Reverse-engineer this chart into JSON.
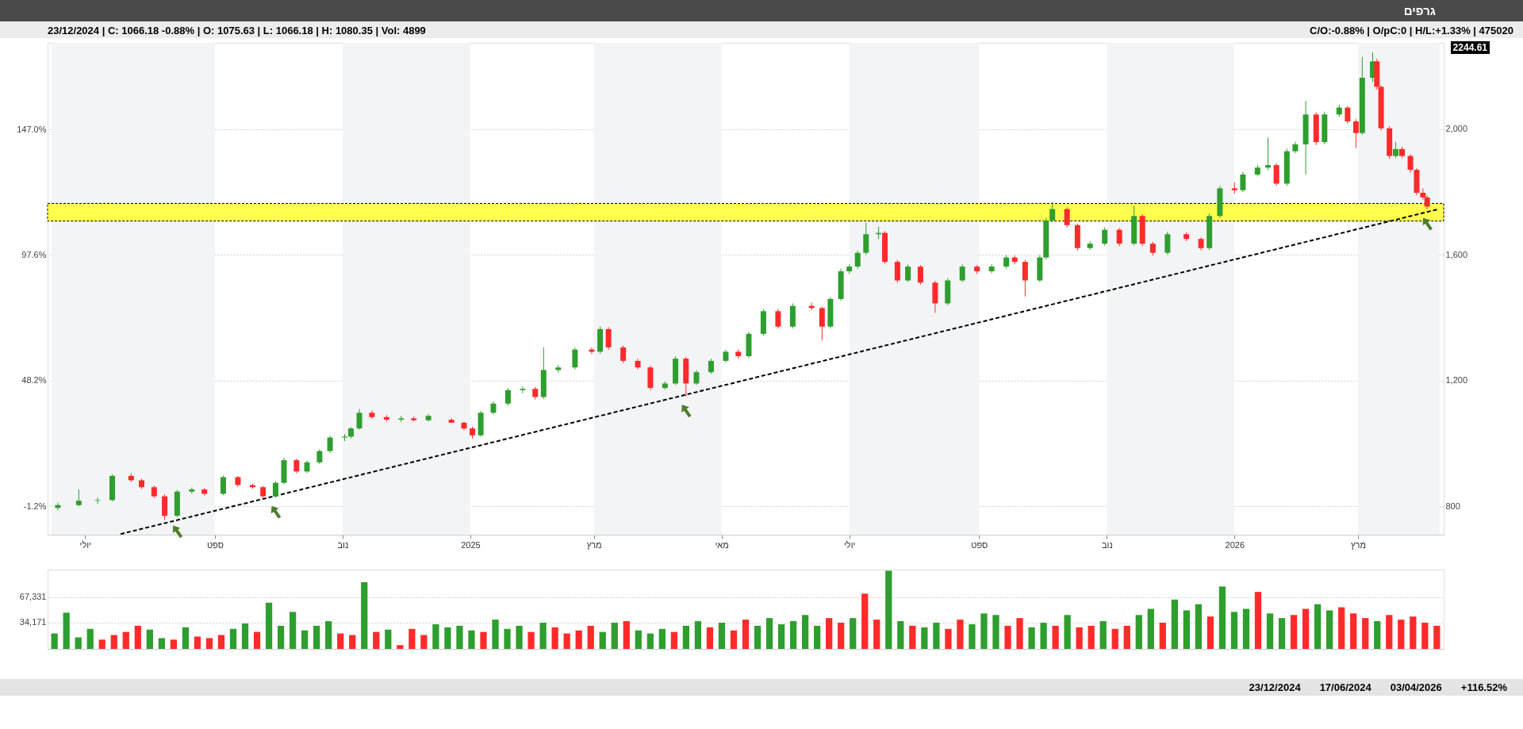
{
  "chart_data": [
    {
      "type": "candlestick",
      "title": "גרפים",
      "annotations": [
        "23/12/2024 | C: 1066.18 -0.88% | O: 1075.63 | L: 1066.18 | H: 1080.35 | Vol: 4899",
        "C/O:-0.88% | O/pC:0 | H/L:+1.33% | 475020",
        "2244.61"
      ],
      "x": [
        "2024-06-18",
        "2024-06-28",
        "2024-07-07",
        "2024-07-14",
        "2024-07-23",
        "2024-07-28",
        "2024-08-03",
        "2024-08-08",
        "2024-08-14",
        "2024-08-21",
        "2024-08-27",
        "2024-09-05",
        "2024-09-12",
        "2024-09-19",
        "2024-09-24",
        "2024-09-30",
        "2024-10-04",
        "2024-10-10",
        "2024-10-15",
        "2024-10-21",
        "2024-10-26",
        "2024-11-02",
        "2024-11-05",
        "2024-11-09",
        "2024-11-15",
        "2024-11-22",
        "2024-11-29",
        "2024-12-05",
        "2024-12-12",
        "2024-12-23",
        "2024-12-29",
        "2025-01-02",
        "2025-01-06",
        "2025-01-12",
        "2025-01-19",
        "2025-01-26",
        "2025-02-01",
        "2025-02-05",
        "2025-02-12",
        "2025-02-20",
        "2025-02-28",
        "2025-03-04",
        "2025-03-08",
        "2025-03-15",
        "2025-03-22",
        "2025-03-28",
        "2025-04-04",
        "2025-04-09",
        "2025-04-14",
        "2025-04-19",
        "2025-04-26",
        "2025-05-03",
        "2025-05-09",
        "2025-05-14",
        "2025-05-21",
        "2025-05-28",
        "2025-06-04",
        "2025-06-13",
        "2025-06-18",
        "2025-06-22",
        "2025-06-27",
        "2025-07-01",
        "2025-07-05",
        "2025-07-09",
        "2025-07-15",
        "2025-07-18",
        "2025-07-24",
        "2025-07-29",
        "2025-08-04",
        "2025-08-11",
        "2025-08-17",
        "2025-08-24",
        "2025-08-31",
        "2025-09-07",
        "2025-09-14",
        "2025-09-18",
        "2025-09-23",
        "2025-09-30",
        "2025-10-03",
        "2025-10-06",
        "2025-10-13",
        "2025-10-18",
        "2025-10-24",
        "2025-10-31",
        "2025-11-07",
        "2025-11-14",
        "2025-11-18",
        "2025-11-23",
        "2025-11-30",
        "2025-12-09",
        "2025-12-16",
        "2025-12-20",
        "2025-12-25",
        "2026-01-01",
        "2026-01-05",
        "2026-01-12",
        "2026-01-17",
        "2026-01-21",
        "2026-01-26",
        "2026-01-30",
        "2026-02-04",
        "2026-02-09",
        "2026-02-13",
        "2026-02-20",
        "2026-02-24",
        "2026-02-28",
        "2026-03-03",
        "2026-03-08",
        "2026-03-10",
        "2026-03-12",
        "2026-03-16",
        "2026-03-19",
        "2026-03-22",
        "2026-03-26",
        "2026-03-29",
        "2026-04-01",
        "2026-04-03"
      ],
      "ohlc": [
        [
          795,
          812,
          788,
          804
        ],
        [
          804,
          854,
          800,
          818
        ],
        [
          818,
          828,
          808,
          820
        ],
        [
          820,
          902,
          816,
          897
        ],
        [
          897,
          905,
          878,
          883
        ],
        [
          883,
          888,
          856,
          861
        ],
        [
          861,
          866,
          826,
          832
        ],
        [
          832,
          838,
          757,
          770
        ],
        [
          770,
          852,
          766,
          847
        ],
        [
          847,
          860,
          840,
          854
        ],
        [
          854,
          858,
          834,
          840
        ],
        [
          840,
          898,
          836,
          893
        ],
        [
          893,
          897,
          862,
          868
        ],
        [
          868,
          872,
          856,
          861
        ],
        [
          861,
          865,
          822,
          832
        ],
        [
          832,
          880,
          828,
          875
        ],
        [
          875,
          955,
          870,
          947
        ],
        [
          947,
          952,
          905,
          911
        ],
        [
          911,
          946,
          906,
          940
        ],
        [
          940,
          982,
          935,
          976
        ],
        [
          976,
          1025,
          970,
          1019
        ],
        [
          1019,
          1030,
          1008,
          1022
        ],
        [
          1022,
          1052,
          1016,
          1048
        ],
        [
          1048,
          1110,
          1044,
          1098
        ],
        [
          1098,
          1105,
          1078,
          1084
        ],
        [
          1084,
          1090,
          1070,
          1076
        ],
        [
          1076,
          1088,
          1068,
          1080
        ],
        [
          1080,
          1086,
          1070,
          1074
        ],
        [
          1074,
          1094,
          1070,
          1088
        ],
        [
          1075.63,
          1080.35,
          1066.18,
          1066.18
        ],
        [
          1066,
          1070,
          1042,
          1048
        ],
        [
          1048,
          1054,
          1016,
          1026
        ],
        [
          1026,
          1104,
          1022,
          1098
        ],
        [
          1098,
          1134,
          1092,
          1127
        ],
        [
          1127,
          1176,
          1120,
          1170
        ],
        [
          1170,
          1182,
          1160,
          1174
        ],
        [
          1174,
          1180,
          1140,
          1148
        ],
        [
          1148,
          1306,
          1142,
          1234
        ],
        [
          1234,
          1250,
          1226,
          1242
        ],
        [
          1242,
          1305,
          1236,
          1299
        ],
        [
          1299,
          1306,
          1284,
          1292
        ],
        [
          1292,
          1372,
          1286,
          1364
        ],
        [
          1364,
          1370,
          1298,
          1306
        ],
        [
          1306,
          1312,
          1256,
          1263
        ],
        [
          1263,
          1270,
          1236,
          1242
        ],
        [
          1242,
          1248,
          1170,
          1177
        ],
        [
          1177,
          1198,
          1172,
          1191
        ],
        [
          1191,
          1278,
          1186,
          1270
        ],
        [
          1270,
          1276,
          1150,
          1191
        ],
        [
          1191,
          1234,
          1186,
          1227
        ],
        [
          1227,
          1270,
          1222,
          1263
        ],
        [
          1263,
          1298,
          1258,
          1292
        ],
        [
          1292,
          1300,
          1270,
          1278
        ],
        [
          1278,
          1356,
          1272,
          1349
        ],
        [
          1349,
          1428,
          1344,
          1421
        ],
        [
          1421,
          1428,
          1366,
          1372
        ],
        [
          1372,
          1446,
          1366,
          1438
        ],
        [
          1438,
          1448,
          1424,
          1431
        ],
        [
          1431,
          1436,
          1328,
          1372
        ],
        [
          1372,
          1466,
          1366,
          1460
        ],
        [
          1460,
          1556,
          1454,
          1548
        ],
        [
          1548,
          1570,
          1540,
          1563
        ],
        [
          1563,
          1614,
          1556,
          1607
        ],
        [
          1607,
          1702,
          1600,
          1666
        ],
        [
          1666,
          1690,
          1650,
          1670
        ],
        [
          1670,
          1676,
          1572,
          1578
        ],
        [
          1578,
          1584,
          1512,
          1519
        ],
        [
          1519,
          1570,
          1514,
          1563
        ],
        [
          1563,
          1568,
          1506,
          1512
        ],
        [
          1512,
          1518,
          1416,
          1446
        ],
        [
          1446,
          1526,
          1440,
          1519
        ],
        [
          1519,
          1570,
          1514,
          1563
        ],
        [
          1563,
          1568,
          1540,
          1548
        ],
        [
          1548,
          1570,
          1542,
          1563
        ],
        [
          1563,
          1600,
          1556,
          1592
        ],
        [
          1592,
          1598,
          1570,
          1578
        ],
        [
          1578,
          1584,
          1468,
          1519
        ],
        [
          1519,
          1600,
          1514,
          1592
        ],
        [
          1592,
          1718,
          1586,
          1710
        ],
        [
          1710,
          1768,
          1704,
          1746
        ],
        [
          1746,
          1752,
          1688,
          1695
        ],
        [
          1695,
          1700,
          1614,
          1622
        ],
        [
          1622,
          1644,
          1616,
          1636
        ],
        [
          1636,
          1688,
          1630,
          1680
        ],
        [
          1680,
          1686,
          1628,
          1636
        ],
        [
          1636,
          1757,
          1630,
          1724
        ],
        [
          1724,
          1730,
          1628,
          1636
        ],
        [
          1636,
          1642,
          1598,
          1607
        ],
        [
          1607,
          1674,
          1600,
          1666
        ],
        [
          1666,
          1672,
          1644,
          1651
        ],
        [
          1651,
          1656,
          1614,
          1622
        ],
        [
          1622,
          1732,
          1616,
          1724
        ],
        [
          1724,
          1820,
          1718,
          1812
        ],
        [
          1812,
          1830,
          1796,
          1806
        ],
        [
          1806,
          1864,
          1800,
          1856
        ],
        [
          1856,
          1886,
          1850,
          1878
        ],
        [
          1878,
          1974,
          1870,
          1886
        ],
        [
          1886,
          1892,
          1820,
          1827
        ],
        [
          1827,
          1938,
          1820,
          1930
        ],
        [
          1930,
          1960,
          1924,
          1952
        ],
        [
          1952,
          2090,
          1856,
          2047
        ],
        [
          2047,
          2054,
          1950,
          1959
        ],
        [
          1959,
          2056,
          1952,
          2047
        ],
        [
          2047,
          2078,
          2040,
          2069
        ],
        [
          2069,
          2074,
          2018,
          2025
        ],
        [
          2025,
          2032,
          1940,
          1988
        ],
        [
          1988,
          2230,
          1982,
          2164
        ],
        [
          2164,
          2244.61,
          2150,
          2216
        ],
        [
          2216,
          2224,
          2126,
          2135
        ],
        [
          2135,
          2140,
          1996,
          2003
        ],
        [
          2003,
          2010,
          1906,
          1915
        ],
        [
          1915,
          1960,
          1908,
          1937
        ],
        [
          1937,
          1944,
          1908,
          1915
        ],
        [
          1915,
          1920,
          1862,
          1871
        ],
        [
          1871,
          1876,
          1790,
          1798
        ],
        [
          1798,
          1812,
          1776,
          1783
        ],
        [
          1783,
          1790,
          1745,
          1754
        ]
      ],
      "colors": [
        "#2e9e2e",
        "#2e9e2e",
        "#2e9e2e",
        "#2e9e2e",
        "#ff2a2a",
        "#ff2a2a",
        "#ff2a2a",
        "#ff2a2a",
        "#2e9e2e",
        "#2e9e2e",
        "#ff2a2a",
        "#2e9e2e",
        "#ff2a2a",
        "#ff2a2a",
        "#ff2a2a",
        "#2e9e2e",
        "#2e9e2e",
        "#ff2a2a",
        "#2e9e2e",
        "#2e9e2e",
        "#2e9e2e",
        "#2e9e2e",
        "#2e9e2e",
        "#2e9e2e",
        "#ff2a2a",
        "#ff2a2a",
        "#2e9e2e",
        "#ff2a2a",
        "#2e9e2e",
        "#ff2a2a",
        "#ff2a2a",
        "#ff2a2a",
        "#2e9e2e",
        "#2e9e2e",
        "#2e9e2e",
        "#2e9e2e",
        "#ff2a2a",
        "#2e9e2e",
        "#2e9e2e",
        "#2e9e2e",
        "#ff2a2a",
        "#2e9e2e",
        "#ff2a2a",
        "#ff2a2a",
        "#ff2a2a",
        "#ff2a2a",
        "#2e9e2e",
        "#2e9e2e",
        "#ff2a2a",
        "#2e9e2e",
        "#2e9e2e",
        "#2e9e2e",
        "#ff2a2a",
        "#2e9e2e",
        "#2e9e2e",
        "#ff2a2a",
        "#2e9e2e",
        "#ff2a2a",
        "#ff2a2a",
        "#2e9e2e",
        "#2e9e2e",
        "#2e9e2e",
        "#2e9e2e",
        "#2e9e2e",
        "#2e9e2e",
        "#ff2a2a",
        "#ff2a2a",
        "#2e9e2e",
        "#ff2a2a",
        "#ff2a2a",
        "#2e9e2e",
        "#2e9e2e",
        "#ff2a2a",
        "#2e9e2e",
        "#2e9e2e",
        "#ff2a2a",
        "#ff2a2a",
        "#2e9e2e",
        "#2e9e2e",
        "#2e9e2e",
        "#ff2a2a",
        "#ff2a2a",
        "#2e9e2e",
        "#2e9e2e",
        "#ff2a2a",
        "#2e9e2e",
        "#ff2a2a",
        "#ff2a2a",
        "#2e9e2e",
        "#ff2a2a",
        "#ff2a2a",
        "#2e9e2e",
        "#2e9e2e",
        "#ff2a2a",
        "#2e9e2e",
        "#2e9e2e",
        "#2e9e2e",
        "#ff2a2a",
        "#2e9e2e",
        "#2e9e2e",
        "#2e9e2e",
        "#ff2a2a",
        "#2e9e2e",
        "#2e9e2e",
        "#ff2a2a",
        "#ff2a2a",
        "#2e9e2e",
        "#2e9e2e",
        "#ff2a2a",
        "#ff2a2a",
        "#ff2a2a",
        "#2e9e2e",
        "#ff2a2a",
        "#ff2a2a",
        "#ff2a2a",
        "#ff2a2a",
        "#ff2a2a"
      ],
      "series": [
        {
          "type": "line",
          "color": "#000000",
          "line_style": "dashed",
          "x": [
            "2024-07-18",
            "2026-04-08"
          ],
          "values": [
            712,
            1745
          ]
        }
      ],
      "bands": [
        {
          "axis": "x",
          "from": "2024-06-15",
          "to": "2024-09-01",
          "color": "#f3f4f6"
        },
        {
          "axis": "x",
          "from": "2024-11-01",
          "to": "2025-01-01",
          "color": "#f3f4f6"
        },
        {
          "axis": "x",
          "from": "2025-03-01",
          "to": "2025-05-01",
          "color": "#f3f4f6"
        },
        {
          "axis": "x",
          "from": "2025-07-01",
          "to": "2025-09-01",
          "color": "#f3f4f6"
        },
        {
          "axis": "x",
          "from": "2025-11-01",
          "to": "2026-01-01",
          "color": "#f3f4f6"
        },
        {
          "axis": "x",
          "from": "2026-03-01",
          "to": "2026-04-09",
          "color": "#f3f4f6"
        },
        {
          "axis": "y",
          "from": 1708,
          "to": 1764,
          "color": "#ffff4d"
        }
      ],
      "xlim": [
        "2024-06-15",
        "2026-04-09"
      ],
      "xticks": [
        {
          "value": "2024-07",
          "label": "יולי"
        },
        {
          "value": "2024-09",
          "label": "ספט"
        },
        {
          "value": "2024-11",
          "label": "נוב"
        },
        {
          "value": "2025-01",
          "label": "2025"
        },
        {
          "value": "2025-03",
          "label": "מרץ"
        },
        {
          "value": "2025-05",
          "label": "מאי"
        },
        {
          "value": "2025-07",
          "label": "יולי"
        },
        {
          "value": "2025-09",
          "label": "ספט"
        },
        {
          "value": "2025-11",
          "label": "נוב"
        },
        {
          "value": "2026-01",
          "label": "2026"
        },
        {
          "value": "2026-03",
          "label": "מרץ"
        }
      ],
      "ylim": [
        710,
        2275
      ],
      "yticks": [
        800,
        {
          "value": 1200,
          "label": "1,200"
        },
        {
          "value": 1600,
          "label": "1,600"
        },
        {
          "value": 2000,
          "label": "2,000"
        }
      ],
      "y2lim": [
        -12.3,
        181.0
      ],
      "y2ticks": [
        {
          "value": -1.2,
          "label": "-1.2%"
        },
        {
          "value": 48.2,
          "label": "48.2%"
        },
        {
          "value": 97.6,
          "label": "97.6%"
        },
        {
          "value": 147,
          "label": "147.0%"
        }
      ],
      "grid": "y"
    },
    {
      "type": "bar",
      "annotations": [
        "23/12/2024",
        "17/06/2024",
        "03/04/2026",
        "+116.52%"
      ],
      "categories": [
        null,
        null,
        null,
        null,
        null,
        null,
        null,
        null,
        null,
        null,
        null,
        null,
        null,
        null,
        null,
        null,
        null,
        null,
        null,
        null,
        null,
        null,
        null,
        null,
        null,
        null,
        null,
        null,
        null,
        null,
        null,
        null,
        null,
        null,
        null,
        null,
        null,
        null,
        null,
        null,
        null,
        null,
        null,
        null,
        null,
        null,
        null,
        null,
        null,
        null,
        null,
        null,
        null,
        null,
        null,
        null,
        null,
        null,
        null,
        null,
        null,
        null,
        null,
        null,
        null,
        null,
        null,
        null,
        null,
        null,
        null,
        null,
        null,
        null,
        null,
        null,
        null,
        null,
        null,
        null,
        null,
        null,
        null,
        null,
        null,
        null,
        null,
        null,
        null,
        null,
        null,
        null,
        null,
        null,
        null,
        null,
        null,
        null,
        null,
        null,
        null,
        null,
        null,
        null,
        null,
        null,
        null,
        null,
        null,
        null,
        null,
        null,
        null,
        null,
        null,
        null,
        null
      ],
      "values": [
        20000,
        47000,
        15000,
        26000,
        12000,
        18000,
        22000,
        30000,
        25000,
        14000,
        12000,
        28000,
        16000,
        14000,
        18000,
        26000,
        33000,
        22000,
        60000,
        30000,
        48000,
        24000,
        30000,
        36000,
        20000,
        18000,
        86500,
        22000,
        25000,
        4899,
        26000,
        18000,
        32000,
        28000,
        30000,
        24000,
        22000,
        38000,
        26000,
        30000,
        22000,
        34000,
        28000,
        20000,
        24000,
        30000,
        22000,
        34000,
        36000,
        24000,
        20000,
        26000,
        22000,
        30000,
        36000,
        28000,
        34000,
        24000,
        38000,
        30000,
        40000,
        32000,
        36000,
        44000,
        30000,
        40000,
        34000,
        40000,
        71700,
        38000,
        101500,
        36000,
        30000,
        28000,
        34000,
        26000,
        38000,
        32000,
        46000,
        44000,
        30000,
        40000,
        28000,
        34000,
        30000,
        44000,
        28000,
        30000,
        36000,
        26000,
        30000,
        44000,
        52000,
        34000,
        64000,
        50000,
        58000,
        42000,
        81000,
        48000,
        52000,
        74000,
        46000,
        40000,
        44000,
        52000,
        58000,
        50000,
        54000,
        46000,
        40000,
        36000,
        44000,
        38000,
        42000,
        34000,
        30000
      ],
      "colors": [
        "#2e9e2e",
        "#2e9e2e",
        "#2e9e2e",
        "#2e9e2e",
        "#ff2a2a",
        "#ff2a2a",
        "#ff2a2a",
        "#ff2a2a",
        "#2e9e2e",
        "#2e9e2e",
        "#ff2a2a",
        "#2e9e2e",
        "#ff2a2a",
        "#ff2a2a",
        "#ff2a2a",
        "#2e9e2e",
        "#2e9e2e",
        "#ff2a2a",
        "#2e9e2e",
        "#2e9e2e",
        "#2e9e2e",
        "#2e9e2e",
        "#2e9e2e",
        "#2e9e2e",
        "#ff2a2a",
        "#ff2a2a",
        "#2e9e2e",
        "#ff2a2a",
        "#2e9e2e",
        "#ff2a2a",
        "#ff2a2a",
        "#ff2a2a",
        "#2e9e2e",
        "#2e9e2e",
        "#2e9e2e",
        "#2e9e2e",
        "#ff2a2a",
        "#2e9e2e",
        "#2e9e2e",
        "#2e9e2e",
        "#ff2a2a",
        "#2e9e2e",
        "#ff2a2a",
        "#ff2a2a",
        "#ff2a2a",
        "#ff2a2a",
        "#2e9e2e",
        "#2e9e2e",
        "#ff2a2a",
        "#2e9e2e",
        "#2e9e2e",
        "#2e9e2e",
        "#ff2a2a",
        "#2e9e2e",
        "#2e9e2e",
        "#ff2a2a",
        "#2e9e2e",
        "#ff2a2a",
        "#ff2a2a",
        "#2e9e2e",
        "#2e9e2e",
        "#2e9e2e",
        "#2e9e2e",
        "#2e9e2e",
        "#2e9e2e",
        "#ff2a2a",
        "#ff2a2a",
        "#2e9e2e",
        "#ff2a2a",
        "#ff2a2a",
        "#2e9e2e",
        "#2e9e2e",
        "#ff2a2a",
        "#2e9e2e",
        "#2e9e2e",
        "#ff2a2a",
        "#ff2a2a",
        "#2e9e2e",
        "#2e9e2e",
        "#2e9e2e",
        "#ff2a2a",
        "#ff2a2a",
        "#2e9e2e",
        "#2e9e2e",
        "#ff2a2a",
        "#2e9e2e",
        "#ff2a2a",
        "#ff2a2a",
        "#2e9e2e",
        "#ff2a2a",
        "#ff2a2a",
        "#2e9e2e",
        "#2e9e2e",
        "#ff2a2a",
        "#2e9e2e",
        "#2e9e2e",
        "#2e9e2e",
        "#ff2a2a",
        "#2e9e2e",
        "#2e9e2e",
        "#2e9e2e",
        "#ff2a2a",
        "#2e9e2e",
        "#2e9e2e",
        "#ff2a2a",
        "#ff2a2a",
        "#2e9e2e",
        "#2e9e2e",
        "#ff2a2a",
        "#ff2a2a",
        "#ff2a2a",
        "#2e9e2e",
        "#ff2a2a",
        "#ff2a2a",
        "#ff2a2a",
        "#ff2a2a",
        "#ff2a2a"
      ],
      "ylim": [
        0,
        103000
      ],
      "yticks": [
        {
          "value": 34171,
          "label": "34,171"
        },
        {
          "value": 67331,
          "label": "67,331"
        }
      ],
      "grid": "y",
      "tick_labels": "y"
    }
  ]
}
